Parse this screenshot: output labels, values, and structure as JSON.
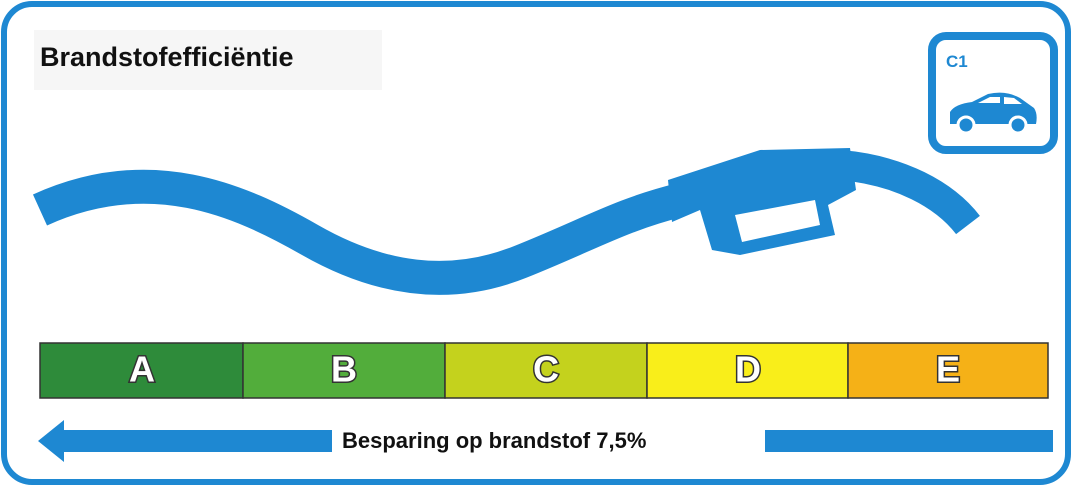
{
  "header": {
    "title": "Brandstofefficiëntie"
  },
  "badge": {
    "label": "C1"
  },
  "scale": {
    "classes": [
      "A",
      "B",
      "C",
      "D",
      "E"
    ]
  },
  "footer": {
    "text": "Besparing op brandstof 7,5%"
  }
}
